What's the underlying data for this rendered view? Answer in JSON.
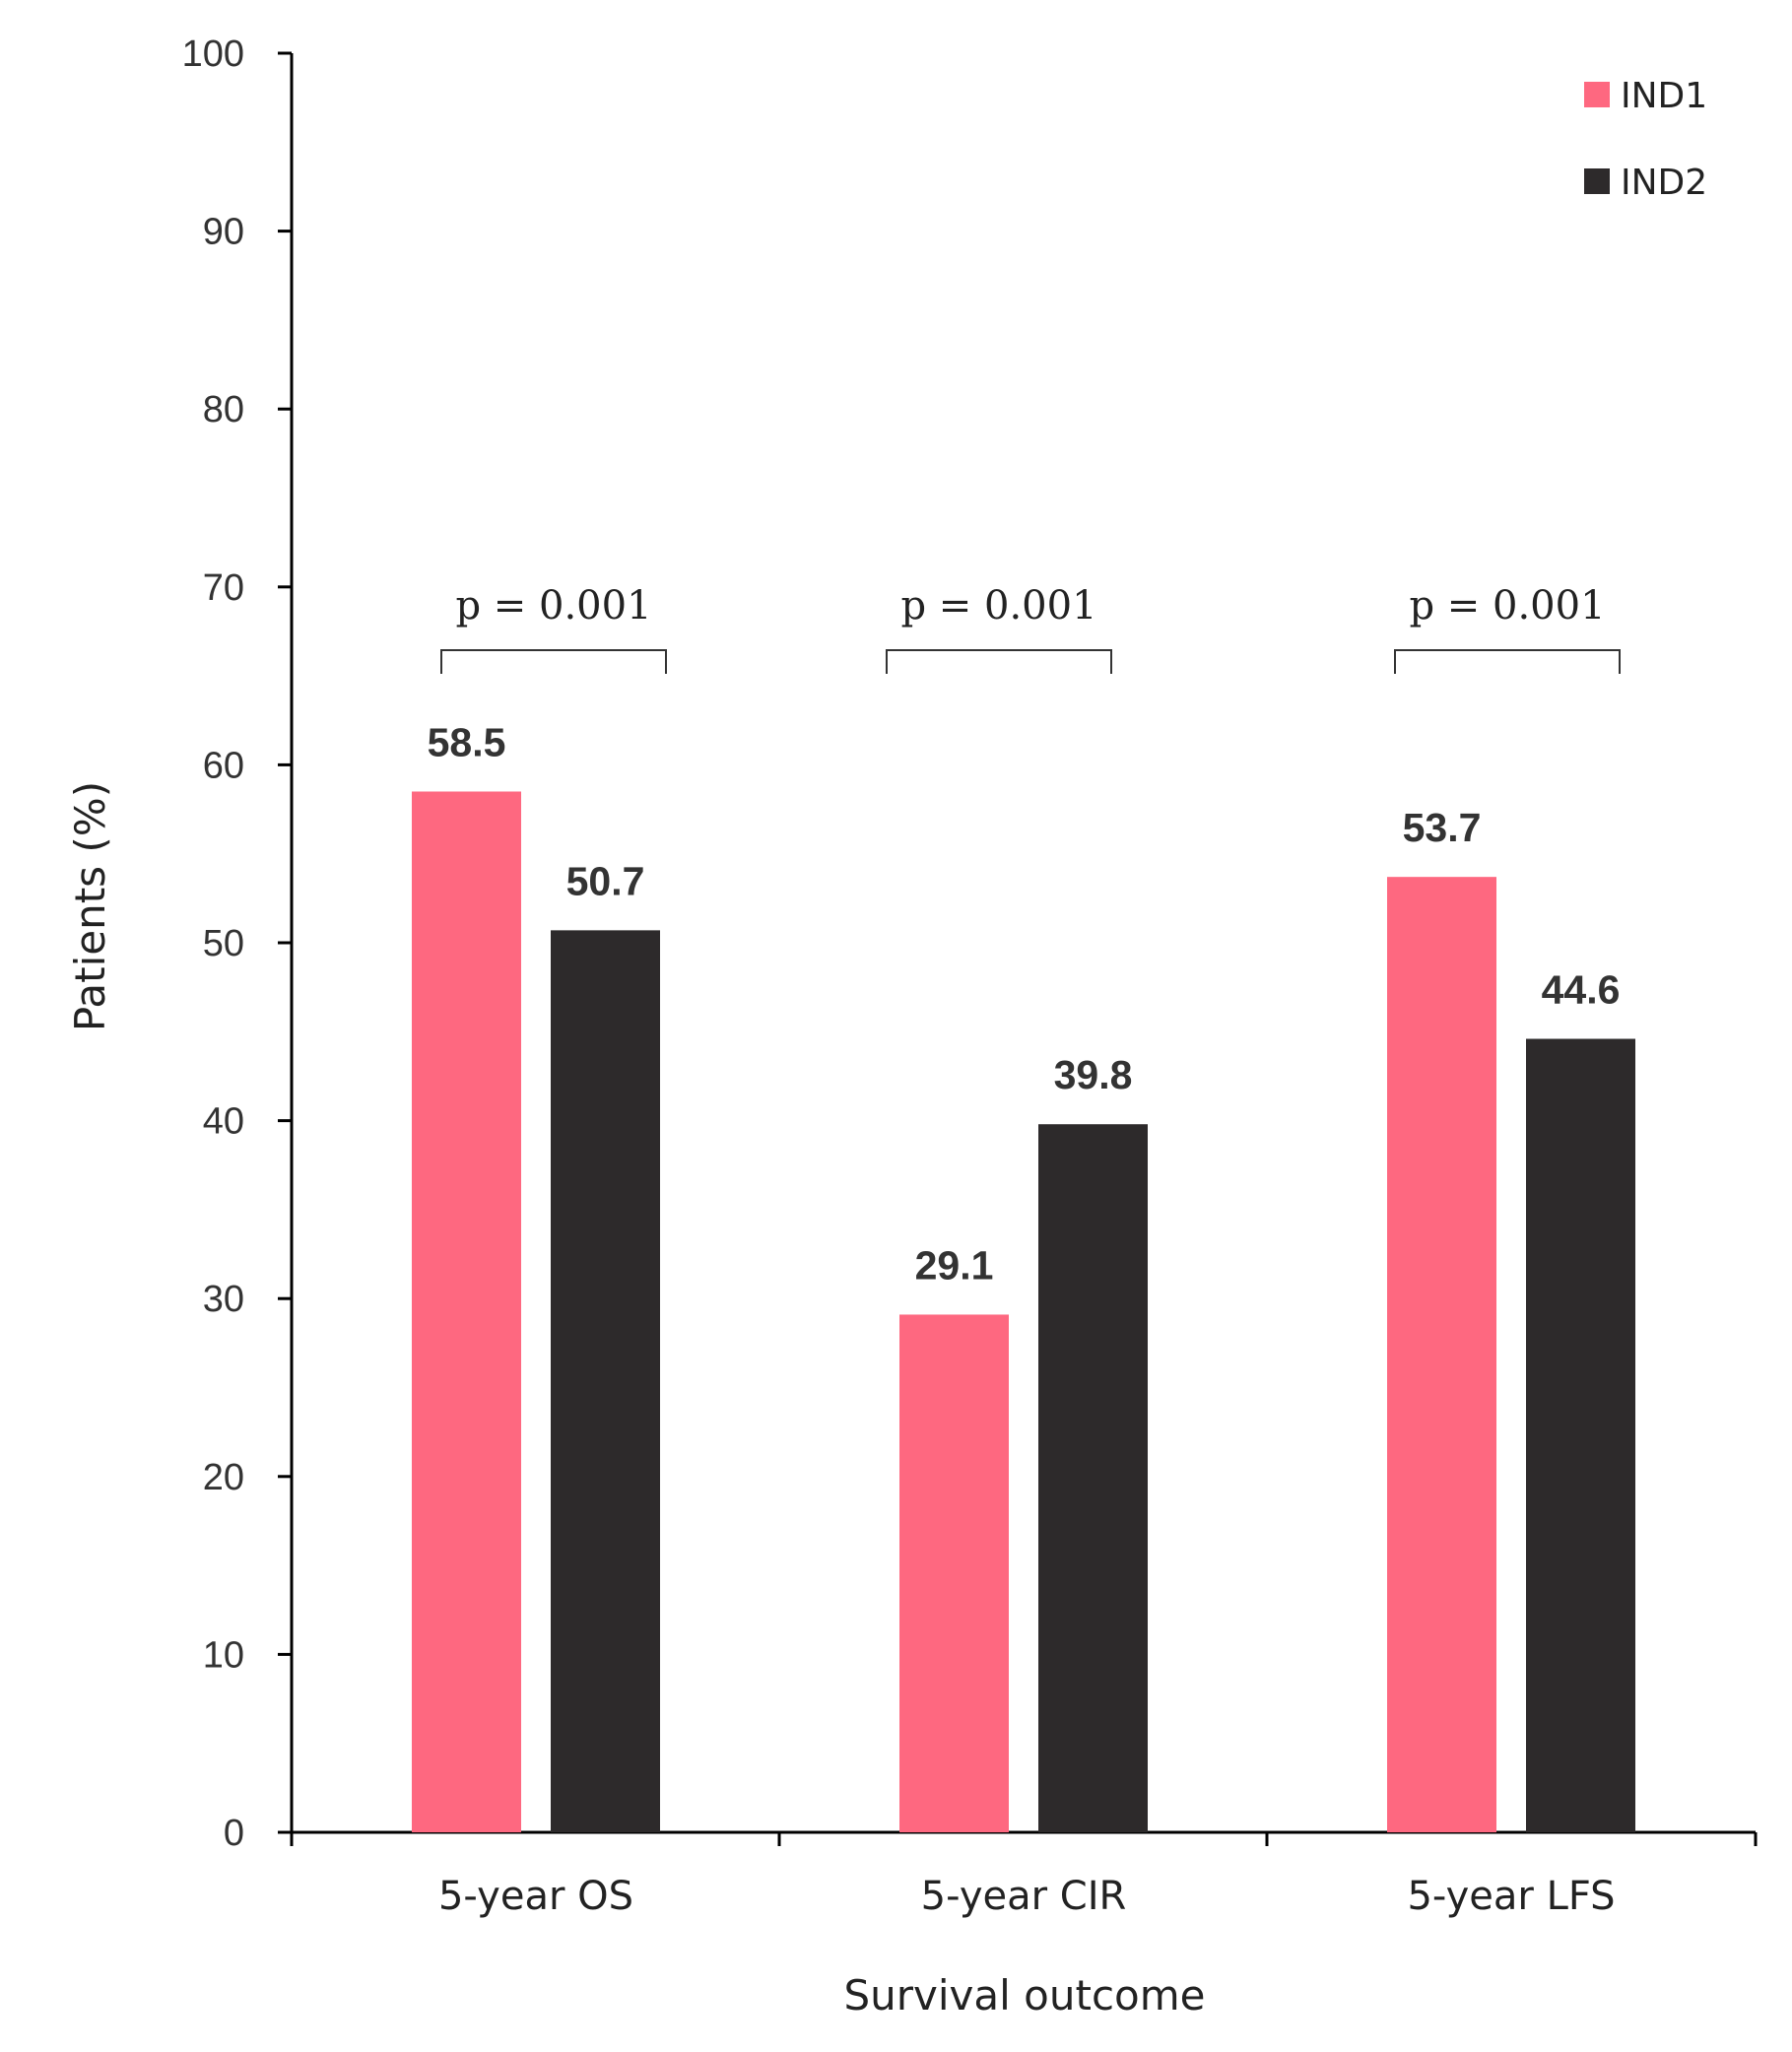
{
  "chart_data": {
    "type": "bar",
    "categories": [
      "5-year OS",
      "5-year CIR",
      "5-year LFS"
    ],
    "series": [
      {
        "name": "IND1",
        "color": "#fe6880",
        "values": [
          58.5,
          29.1,
          53.7
        ]
      },
      {
        "name": "IND2",
        "color": "#2d2a2b",
        "values": [
          50.7,
          39.8,
          44.6
        ]
      }
    ],
    "data_labels": [
      [
        "58.5",
        "29.1",
        "53.7"
      ],
      [
        "50.7",
        "39.8",
        "44.6"
      ]
    ],
    "xlabel": "Survival outcome",
    "ylabel": "Patients (%)",
    "ylim": [
      0,
      100
    ],
    "yticks": [
      "0",
      "10",
      "20",
      "30",
      "40",
      "50",
      "60",
      "70",
      "80",
      "90",
      "100"
    ],
    "annotations": [
      "p = 0.001",
      "p = 0.001",
      "p = 0.001"
    ],
    "legend_position": "top-right",
    "grid": false
  }
}
